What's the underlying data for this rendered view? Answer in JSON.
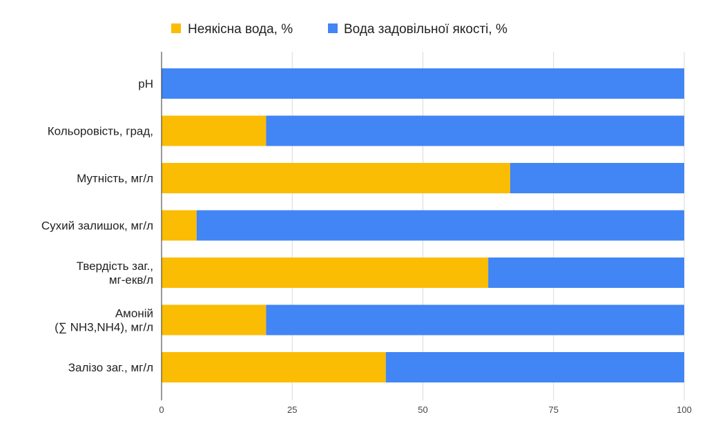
{
  "chart_data": {
    "type": "bar",
    "orientation": "horizontal",
    "stacked": true,
    "categories": [
      [
        "pH"
      ],
      [
        "Кольоровість, град,"
      ],
      [
        "Мутність, мг/л"
      ],
      [
        "Сухий залишок, мг/л"
      ],
      [
        "Твердість заг.,",
        "мг-екв/л"
      ],
      [
        "Амоній",
        "(∑ NH3,NH4), мг/л"
      ],
      [
        "Залізо заг., мг/л"
      ]
    ],
    "series": [
      {
        "name": "Неякісна вода, %",
        "color": "#fbbc04",
        "values": [
          0,
          20,
          66.7,
          6.7,
          62.5,
          20,
          42.9
        ]
      },
      {
        "name": "Вода задовільної якості, %",
        "color": "#4285f4",
        "values": [
          100,
          80,
          33.3,
          93.3,
          37.5,
          80,
          57.1
        ]
      }
    ],
    "xlim": [
      0,
      100
    ],
    "xticks": [
      "0",
      "25",
      "50",
      "75",
      "100"
    ],
    "grid": true,
    "legend_position": "top"
  }
}
